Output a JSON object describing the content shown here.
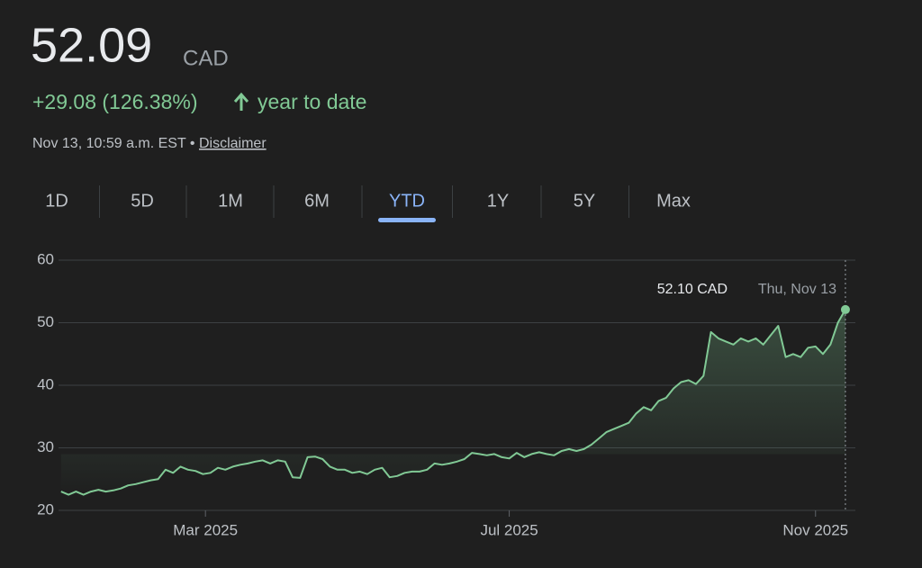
{
  "price": "52.09",
  "currency": "CAD",
  "change": "+29.08 (126.38%)",
  "change_period": "year to date",
  "timestamp": "Nov 13, 10:59 a.m. EST",
  "separator": "•",
  "disclaimer": "Disclaimer",
  "ranges": [
    "1D",
    "5D",
    "1M",
    "6M",
    "YTD",
    "1Y",
    "5Y",
    "Max"
  ],
  "selected_range": 4,
  "chart_data": {
    "type": "line",
    "color": "#81c995",
    "x": [
      1,
      4,
      7,
      10,
      13,
      16,
      19,
      22,
      25,
      28,
      31,
      34,
      37,
      40,
      43,
      46,
      49,
      52,
      55,
      58,
      61,
      64,
      67,
      70,
      73,
      76,
      79,
      82,
      85,
      88,
      91,
      94,
      97,
      100,
      103,
      106,
      109,
      112,
      115,
      118,
      121,
      124,
      127,
      130,
      133,
      136,
      139,
      142,
      145,
      148,
      151,
      154,
      157,
      160,
      163,
      166,
      169,
      172,
      175,
      178,
      181,
      184,
      187,
      190,
      193,
      196,
      199,
      202,
      205,
      208,
      211,
      214,
      217,
      220,
      223,
      226,
      229,
      232,
      235,
      238,
      241,
      244,
      247,
      250,
      253,
      256,
      259,
      262,
      265,
      268,
      271,
      274,
      277,
      280,
      283,
      286,
      289,
      292,
      295,
      298,
      301,
      304,
      307,
      310,
      313,
      316
    ],
    "values": [
      23,
      22.5,
      23,
      22.5,
      23,
      23.3,
      23,
      23.2,
      23.5,
      24,
      24.2,
      24.5,
      24.8,
      25,
      26.5,
      26,
      27,
      26.5,
      26.3,
      25.8,
      26,
      26.8,
      26.5,
      27,
      27.3,
      27.5,
      27.8,
      28,
      27.5,
      28,
      27.8,
      25.3,
      25.2,
      28.5,
      28.6,
      28.2,
      27,
      26.5,
      26.5,
      26,
      26.2,
      25.8,
      26.5,
      26.8,
      25.3,
      25.5,
      26,
      26.2,
      26.2,
      26.5,
      27.5,
      27.3,
      27.5,
      27.8,
      28.2,
      29.2,
      29,
      28.8,
      29,
      28.5,
      28.3,
      29.2,
      28.5,
      29,
      29.3,
      29,
      28.8,
      29.5,
      29.8,
      29.5,
      29.8,
      30.5,
      31.5,
      32.5,
      33,
      33.5,
      34,
      35.5,
      36.5,
      36,
      37.5,
      38,
      39.5,
      40.5,
      40.8,
      40.2,
      41.5,
      48.5,
      47.5,
      47,
      46.5,
      47.5,
      47,
      47.5,
      46.5,
      48,
      49.5,
      44.5,
      45,
      44.5,
      46,
      46.2,
      45,
      46.5,
      50,
      52.1
    ],
    "xlim": [
      0,
      320
    ],
    "xticks": [
      {
        "value": 59,
        "label": "Mar 2025"
      },
      {
        "value": 181,
        "label": "Jul 2025"
      },
      {
        "value": 304,
        "label": "Nov 2025"
      }
    ],
    "ylim": [
      20,
      60
    ],
    "yticks": [
      20,
      30,
      40,
      50,
      60
    ],
    "grid": true,
    "tooltip": {
      "value": "52.10 CAD",
      "date": "Thu, Nov 13"
    }
  }
}
